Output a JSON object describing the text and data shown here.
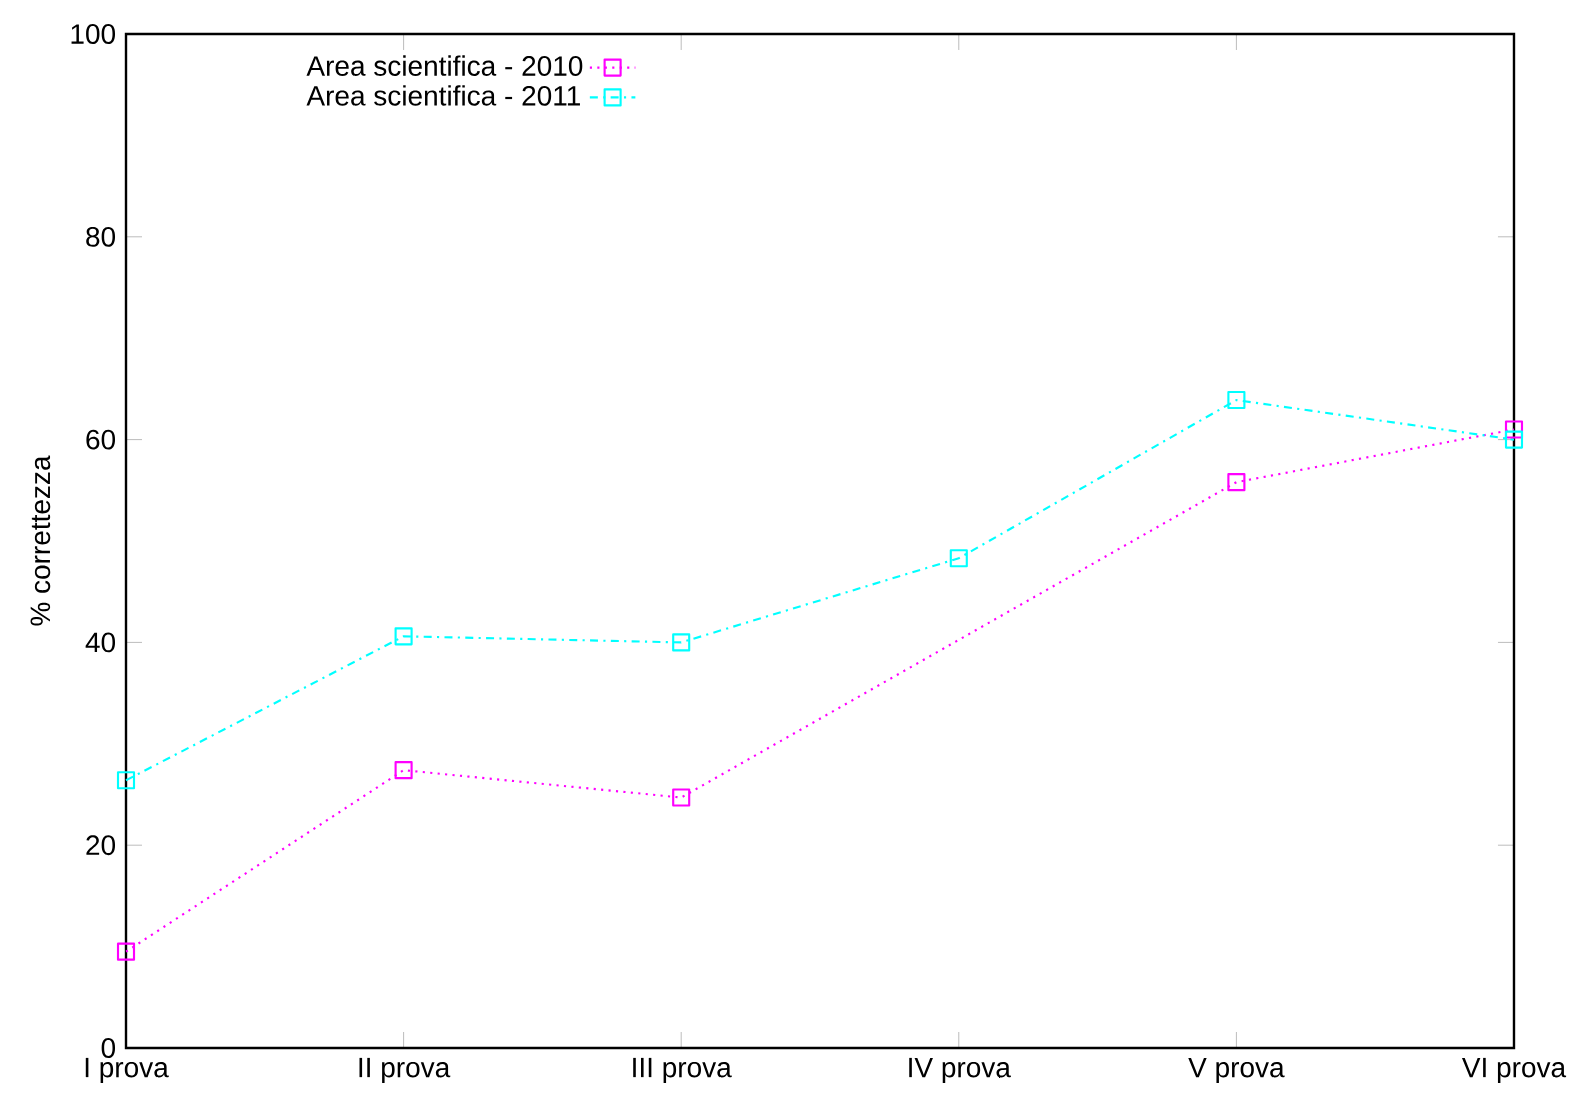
{
  "chart_data": {
    "type": "line",
    "ylabel": "% correttezza",
    "categories": [
      "I prova",
      "II prova",
      "III prova",
      "IV prova",
      "V prova",
      "VI prova"
    ],
    "series": [
      {
        "name": "Area scientifica - 2010",
        "color": "#ff00ff",
        "values": [
          9.5,
          27.4,
          24.7,
          null,
          55.8,
          61.0
        ],
        "marker": "square",
        "line_style": "dotted"
      },
      {
        "name": "Area scientifica - 2011",
        "color": "#00ffff",
        "values": [
          26.4,
          40.6,
          40.0,
          48.3,
          63.9,
          60.0
        ],
        "marker": "square",
        "line_style": "dashed"
      }
    ],
    "ylim": [
      0,
      100
    ],
    "yticks": [
      0,
      20,
      40,
      60,
      80,
      100
    ],
    "grid": false,
    "legend": "top left"
  }
}
